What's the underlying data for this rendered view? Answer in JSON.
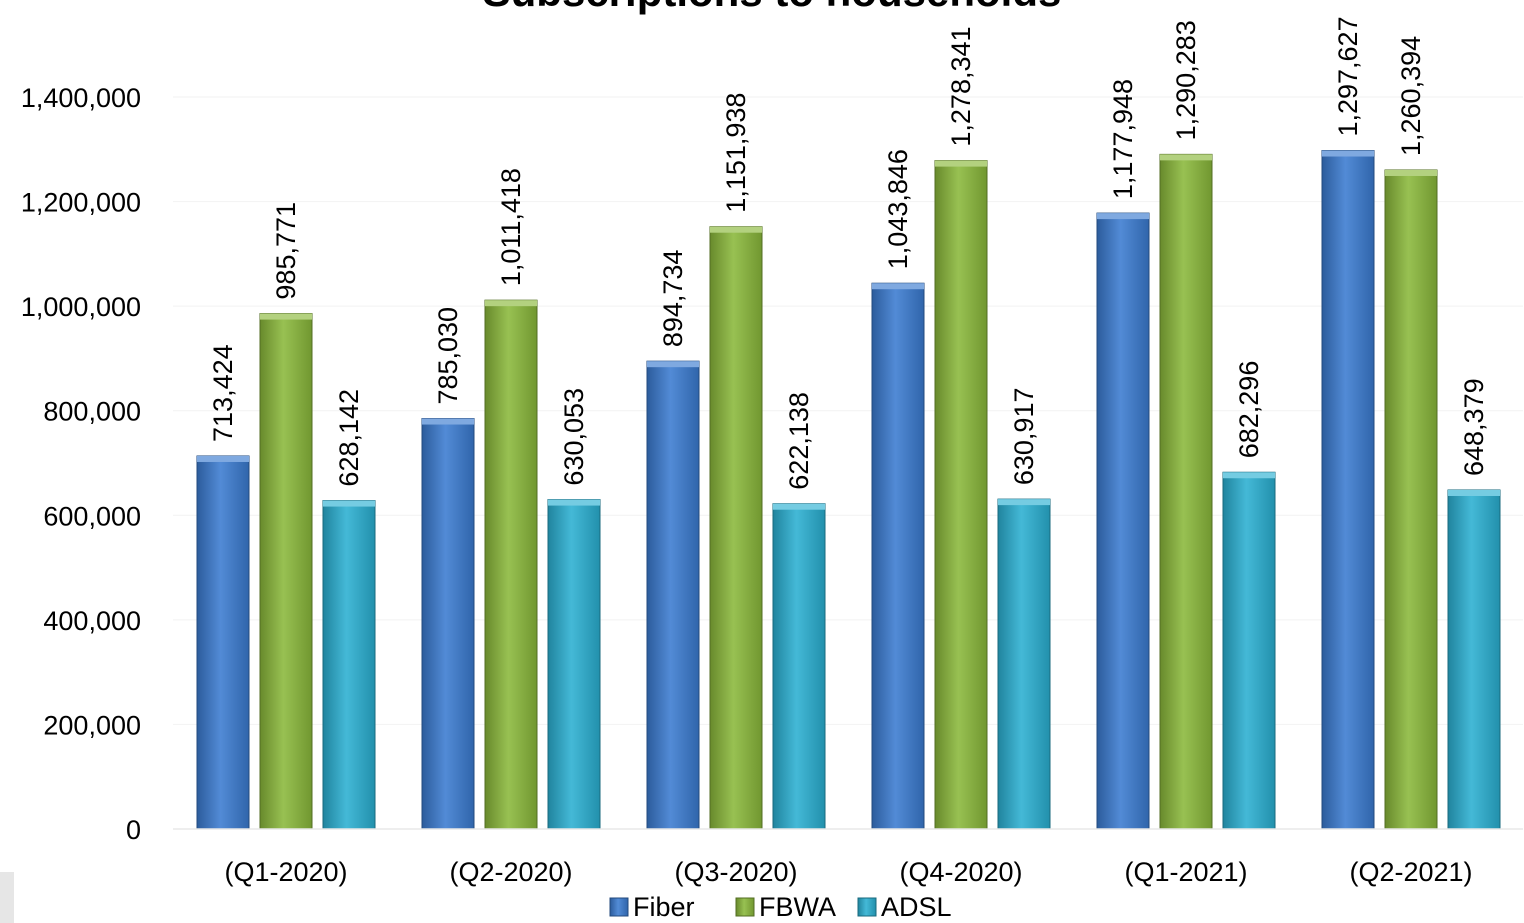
{
  "chart_data": {
    "type": "bar",
    "title": "Subscriptions to households",
    "xlabel": "",
    "ylabel": "",
    "ylim": [
      0,
      1400000
    ],
    "yticks": [
      0,
      200000,
      400000,
      600000,
      800000,
      1000000,
      1200000,
      1400000
    ],
    "ytick_labels": [
      "0",
      "200,000",
      "400,000",
      "600,000",
      "800,000",
      "1,000,000",
      "1,200,000",
      "1,400,000"
    ],
    "categories": [
      "(Q1-2020)",
      "(Q2-2020)",
      "(Q3-2020)",
      "(Q4-2020)",
      "(Q1-2021)",
      "(Q2-2021)"
    ],
    "series": [
      {
        "name": "Fiber",
        "color": "#3a7bd0",
        "values": [
          713424,
          785030,
          894734,
          1043846,
          1177948,
          1297627
        ],
        "labels": [
          "713,424",
          "785,030",
          "894,734",
          "1,043,846",
          "1,177,948",
          "1,297,627"
        ]
      },
      {
        "name": "FBWA",
        "color": "#8ab83a",
        "values": [
          985771,
          1011418,
          1151938,
          1278341,
          1290283,
          1260394
        ],
        "labels": [
          "985,771",
          "1,011,418",
          "1,151,938",
          "1,278,341",
          "1,290,283",
          "1,260,394"
        ]
      },
      {
        "name": "ADSL",
        "color": "#2ab0d2",
        "values": [
          628142,
          630053,
          622138,
          630917,
          682296,
          648379
        ],
        "labels": [
          "628,142",
          "630,053",
          "622,138",
          "630,917",
          "682,296",
          "648,379"
        ]
      }
    ],
    "grid": true,
    "legend_position": "bottom"
  }
}
